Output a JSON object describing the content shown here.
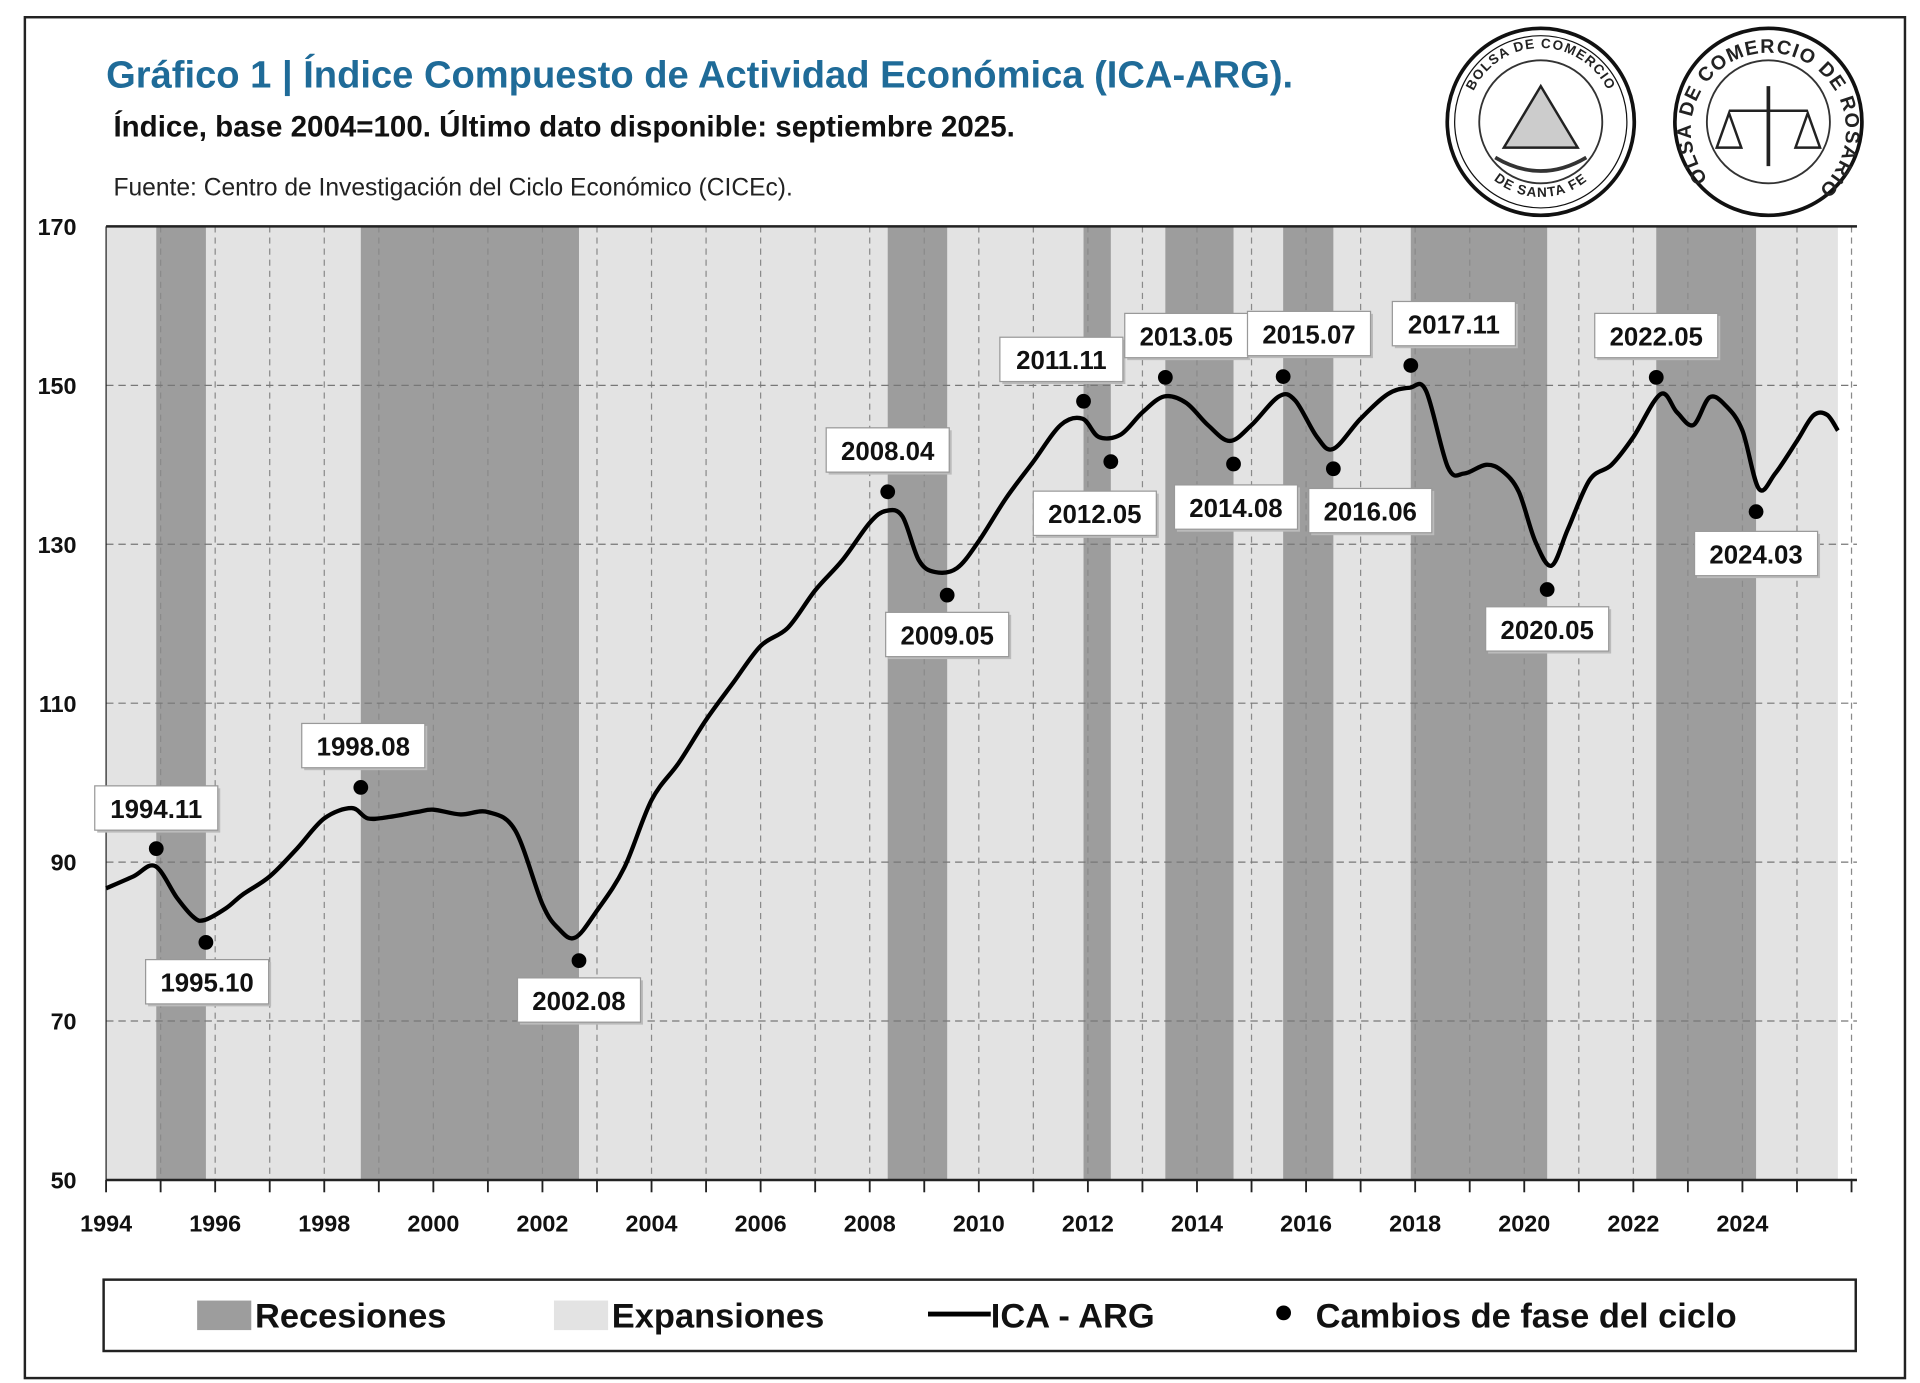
{
  "header": {
    "title": "Gráfico 1 | Índice Compuesto de Actividad Económica (ICA-ARG).",
    "subtitle": "Índice, base 2004=100. Último dato disponible: septiembre 2025.",
    "source": "Fuente: Centro de Investigación del Ciclo Económico (CICEc)."
  },
  "logos": [
    {
      "name": "bolsa-de-comercio-de-santa-fe-seal",
      "text_top": "BOLSA DE COMERCIO",
      "text_bottom": "DE SANTA FE"
    },
    {
      "name": "bolsa-de-comercio-de-rosario-seal",
      "text": "BOLSA DE COMERCIO DE ROSARIO"
    }
  ],
  "colors": {
    "title": "#1f6b98",
    "recession": "#9d9d9d",
    "expansion": "#e3e3e3",
    "line": "#000000"
  },
  "chart_data": {
    "type": "line",
    "title": "Gráfico 1 | Índice Compuesto de Actividad Económica (ICA-ARG).",
    "xlim": [
      1994,
      2026.1
    ],
    "ylim": [
      50,
      170
    ],
    "yticks": [
      "50",
      "70",
      "90",
      "110",
      "130",
      "150",
      "170"
    ],
    "xticks": [
      "1994",
      "1996",
      "1998",
      "2000",
      "2002",
      "2004",
      "2006",
      "2008",
      "2010",
      "2012",
      "2014",
      "2016",
      "2018",
      "2020",
      "2022",
      "2024"
    ],
    "grid": true,
    "legend_position": "bottom",
    "legend": {
      "recessions": "Recesiones",
      "expansions": "Expansiones",
      "series": "ICA - ARG",
      "turning_points": "Cambios de fase del ciclo"
    },
    "expansion_span": [
      1994.0,
      2025.75
    ],
    "recessions": [
      [
        1994.92,
        1995.83
      ],
      [
        1998.67,
        2002.67
      ],
      [
        2008.33,
        2009.42
      ],
      [
        2011.92,
        2012.42
      ],
      [
        2013.42,
        2014.67
      ],
      [
        2015.58,
        2016.5
      ],
      [
        2017.92,
        2020.42
      ],
      [
        2022.42,
        2024.25
      ]
    ],
    "series": [
      {
        "name": "ICA - ARG",
        "x": [
          1994.0,
          1994.5,
          1994.9,
          1995.3,
          1995.6,
          1995.8,
          1996.2,
          1996.5,
          1997.0,
          1997.5,
          1998.0,
          1998.5,
          1998.8,
          1999.2,
          1999.7,
          2000.0,
          2000.5,
          2001.0,
          2001.5,
          2002.0,
          2002.3,
          2002.6,
          2003.0,
          2003.5,
          2004.0,
          2004.5,
          2005.0,
          2005.5,
          2006.0,
          2006.5,
          2007.0,
          2007.5,
          2008.0,
          2008.3,
          2008.6,
          2008.9,
          2009.2,
          2009.6,
          2010.0,
          2010.5,
          2011.0,
          2011.5,
          2011.9,
          2012.2,
          2012.6,
          2013.0,
          2013.4,
          2013.8,
          2014.2,
          2014.6,
          2015.0,
          2015.5,
          2015.8,
          2016.2,
          2016.5,
          2017.0,
          2017.5,
          2017.9,
          2018.2,
          2018.6,
          2018.9,
          2019.3,
          2019.6,
          2019.9,
          2020.2,
          2020.5,
          2020.8,
          2021.2,
          2021.6,
          2022.0,
          2022.5,
          2022.8,
          2023.1,
          2023.4,
          2023.7,
          2024.0,
          2024.3,
          2024.6,
          2025.0,
          2025.3,
          2025.55,
          2025.75
        ],
        "y": [
          86.7,
          88.2,
          89.5,
          85.5,
          83.1,
          82.7,
          84.2,
          85.9,
          88.2,
          91.7,
          95.5,
          96.8,
          95.5,
          95.7,
          96.3,
          96.6,
          96.0,
          96.3,
          94.0,
          84.7,
          81.6,
          80.5,
          83.9,
          89.3,
          97.8,
          102.5,
          107.9,
          112.6,
          117.2,
          119.5,
          124.2,
          128.0,
          132.7,
          134.2,
          133.5,
          128.0,
          126.5,
          127.0,
          130.4,
          135.8,
          140.4,
          145.0,
          145.8,
          143.5,
          143.8,
          146.6,
          148.6,
          147.8,
          145.0,
          143.0,
          145.0,
          148.6,
          148.1,
          143.5,
          142.0,
          145.8,
          148.9,
          149.7,
          149.3,
          139.7,
          138.9,
          140.0,
          139.2,
          136.6,
          130.4,
          127.3,
          131.9,
          138.1,
          140.0,
          143.5,
          148.9,
          146.6,
          145.0,
          148.5,
          147.4,
          144.3,
          137.0,
          138.9,
          143.0,
          146.2,
          146.3,
          144.3
        ]
      }
    ],
    "turning_points": [
      {
        "label": "1994.11",
        "x": 1994.92,
        "y": 91.7
      },
      {
        "label": "1995.10",
        "x": 1995.83,
        "y": 79.9
      },
      {
        "label": "1998.08",
        "x": 1998.67,
        "y": 99.4
      },
      {
        "label": "2002.08",
        "x": 2002.67,
        "y": 77.6
      },
      {
        "label": "2008.04",
        "x": 2008.33,
        "y": 136.6
      },
      {
        "label": "2009.05",
        "x": 2009.42,
        "y": 123.6
      },
      {
        "label": "2011.11",
        "x": 2011.92,
        "y": 148.0
      },
      {
        "label": "2012.05",
        "x": 2012.42,
        "y": 140.4
      },
      {
        "label": "2013.05",
        "x": 2013.42,
        "y": 151.0
      },
      {
        "label": "2014.08",
        "x": 2014.67,
        "y": 140.1
      },
      {
        "label": "2015.07",
        "x": 2015.58,
        "y": 151.1
      },
      {
        "label": "2016.06",
        "x": 2016.5,
        "y": 139.5
      },
      {
        "label": "2017.11",
        "x": 2017.92,
        "y": 152.5
      },
      {
        "label": "2020.05",
        "x": 2020.42,
        "y": 124.3
      },
      {
        "label": "2022.05",
        "x": 2022.42,
        "y": 151.0
      },
      {
        "label": "2024.03",
        "x": 2024.25,
        "y": 134.1
      }
    ]
  }
}
